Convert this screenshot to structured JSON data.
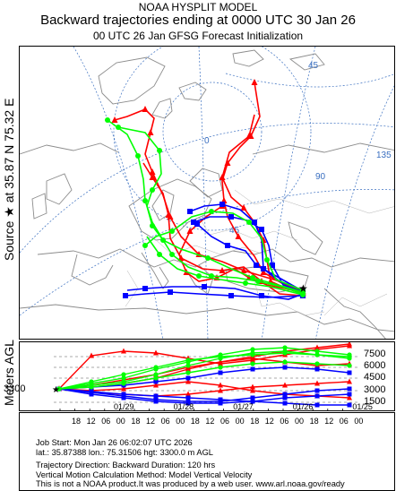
{
  "header": {
    "model": "NOAA HYSPLIT MODEL",
    "title": "Backward trajectories ending at 0000 UTC 30 Jan 26",
    "subtitle": "00 UTC 26 Jan    GFSG  Forecast Initialization"
  },
  "source_label": "Source ★ at   35.87 N   75.32 E",
  "vertical_label": "Meters AGL",
  "source_height": "3300",
  "map": {
    "grid_labels": [
      "45",
      "0",
      "90",
      "135",
      "45"
    ],
    "source_marker": "source-star",
    "colors": {
      "red": "#ff0000",
      "blue": "#0000ff",
      "green": "#00ff00"
    }
  },
  "vertical": {
    "altitude_labels": [
      "7500",
      "6000",
      "4500",
      "3000",
      "1500"
    ],
    "time_ticks": [
      "18",
      "12",
      "06",
      "00",
      "18",
      "12",
      "06",
      "00",
      "18",
      "12",
      "06",
      "00",
      "18",
      "12",
      "06",
      "00",
      "18",
      "12",
      "06",
      "00"
    ],
    "date_labels": [
      "01/29",
      "01/28",
      "01/27",
      "01/26",
      "01/25"
    ]
  },
  "footer": {
    "job": "Job Start: Mon Jan 26 06:02:07 UTC 2026",
    "latlon": "lat.: 35.87388   lon.: 75.31506    hgt: 3300.0 m AGL",
    "direction": "Trajectory Direction: Backward       Duration: 120 hrs",
    "vertical_method": "Vertical Motion Calculation Method: Model Vertical Velocity",
    "disclaimer": "This is not a NOAA product.It was produced by a web user. www.arl.noaa.gov/ready"
  }
}
